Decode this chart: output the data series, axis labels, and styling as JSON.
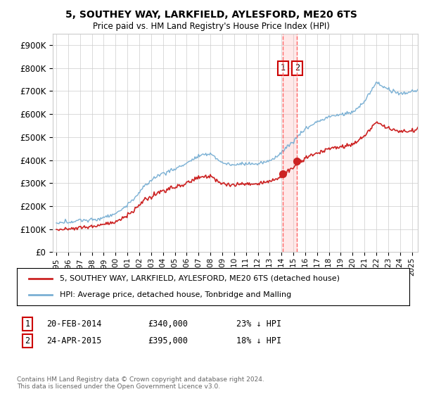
{
  "title": "5, SOUTHEY WAY, LARKFIELD, AYLESFORD, ME20 6TS",
  "subtitle": "Price paid vs. HM Land Registry's House Price Index (HPI)",
  "legend_line1": "5, SOUTHEY WAY, LARKFIELD, AYLESFORD, ME20 6TS (detached house)",
  "legend_line2": "HPI: Average price, detached house, Tonbridge and Malling",
  "transaction1_date": "20-FEB-2014",
  "transaction1_price": 340000,
  "transaction1_pct": "23%",
  "transaction2_date": "24-APR-2015",
  "transaction2_price": 395000,
  "transaction2_pct": "18%",
  "transaction1_year": 2014.13,
  "transaction2_year": 2015.32,
  "copyright_text": "Contains HM Land Registry data © Crown copyright and database right 2024.\nThis data is licensed under the Open Government Licence v3.0.",
  "hpi_color": "#7ab0d4",
  "price_color": "#cc2222",
  "marker_color": "#cc2222",
  "vline_color": "#ff6666",
  "shade_color": "#ffdddd",
  "grid_color": "#cccccc",
  "background_color": "#ffffff",
  "ylim": [
    0,
    950000
  ],
  "xlim_start": 1994.7,
  "xlim_end": 2025.5,
  "yticks": [
    0,
    100000,
    200000,
    300000,
    400000,
    500000,
    600000,
    700000,
    800000,
    900000
  ],
  "xticks": [
    1995,
    1996,
    1997,
    1998,
    1999,
    2000,
    2001,
    2002,
    2003,
    2004,
    2005,
    2006,
    2007,
    2008,
    2009,
    2010,
    2011,
    2012,
    2013,
    2014,
    2015,
    2016,
    2017,
    2018,
    2019,
    2020,
    2021,
    2022,
    2023,
    2024,
    2025
  ]
}
